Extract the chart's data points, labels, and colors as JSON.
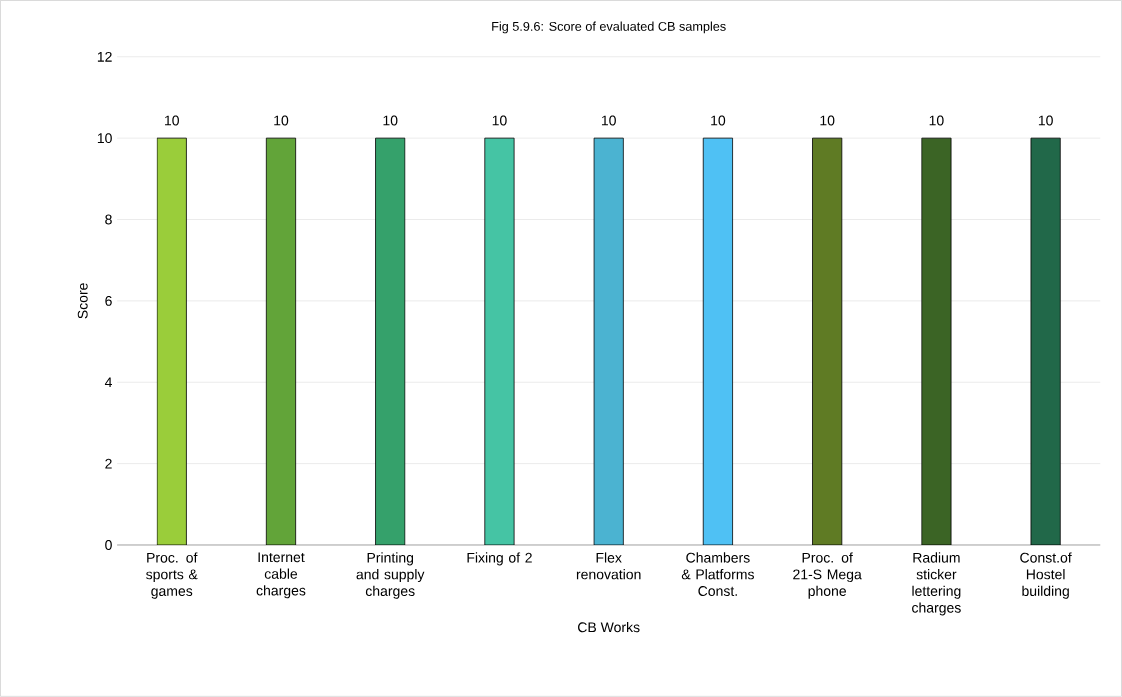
{
  "chart_data": {
    "type": "bar",
    "title": "Fig 5.9.6: Score of evaluated CB samples",
    "xlabel": "CB Works",
    "ylabel": "Score",
    "categories": [
      "Proc. of sports & games",
      "Internet cable charges",
      "Printing and supply charges",
      "Fixing of 2",
      "Flex renovation",
      "Chambers & Platforms Const.",
      "Proc. of 21-S Mega phone",
      "Radium sticker lettering charges",
      "Const.of Hostel building"
    ],
    "values": [
      10,
      10,
      10,
      10,
      10,
      10,
      10,
      10,
      10
    ],
    "colors": [
      "#9acd3a",
      "#62a439",
      "#35a16b",
      "#45c4a4",
      "#4bb3d1",
      "#4fc1f4",
      "#5f7b24",
      "#3b6425",
      "#216849"
    ],
    "ylim": [
      0,
      12
    ],
    "yticks": [
      0,
      2,
      4,
      6,
      8,
      10,
      12
    ],
    "grid": "y",
    "data_labels": true
  }
}
